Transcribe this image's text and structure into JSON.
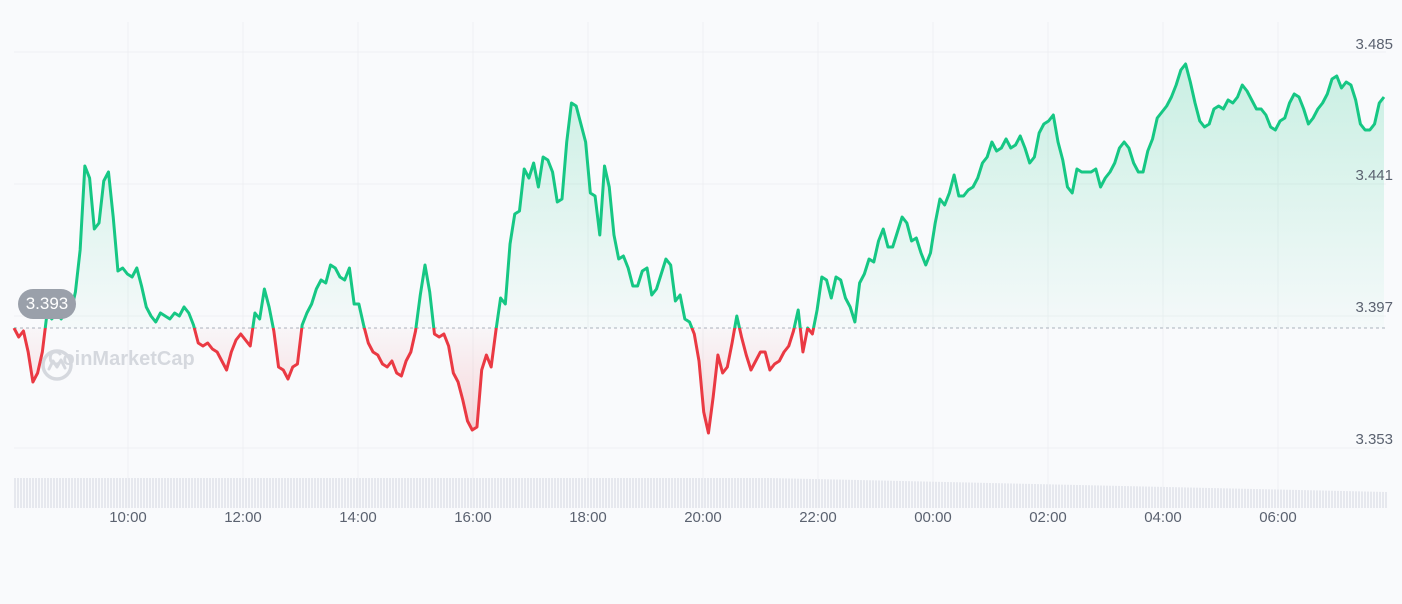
{
  "chart_data": {
    "type": "area",
    "title": "",
    "xlabel": "",
    "ylabel": "",
    "x_tick_labels": [
      "10:00",
      "12:00",
      "14:00",
      "16:00",
      "18:00",
      "20:00",
      "22:00",
      "00:00",
      "02:00",
      "04:00",
      "06:00"
    ],
    "y_tick_labels": [
      "3.485",
      "3.441",
      "3.397",
      "3.353"
    ],
    "ylim": [
      3.353,
      3.485
    ],
    "reference_value": "3.393",
    "grid": true,
    "colors": {
      "up": "#16c784",
      "down": "#ea3943",
      "ref_line": "#c5c9d1",
      "grid": "#eef0f3"
    },
    "series": [
      {
        "values": [
          3.393,
          3.39,
          3.392,
          3.385,
          3.375,
          3.378,
          3.385,
          3.398,
          3.396,
          3.398,
          3.396,
          3.4,
          3.398,
          3.405,
          3.419,
          3.447,
          3.443,
          3.426,
          3.428,
          3.442,
          3.445,
          3.43,
          3.412,
          3.413,
          3.411,
          3.41,
          3.413,
          3.407,
          3.4,
          3.397,
          3.395,
          3.398,
          3.397,
          3.396,
          3.398,
          3.397,
          3.4,
          3.398,
          3.394,
          3.388,
          3.387,
          3.388,
          3.386,
          3.385,
          3.382,
          3.379,
          3.385,
          3.389,
          3.391,
          3.389,
          3.387,
          3.398,
          3.396,
          3.406,
          3.4,
          3.392,
          3.38,
          3.379,
          3.376,
          3.38,
          3.381,
          3.394,
          3.398,
          3.401,
          3.406,
          3.409,
          3.408,
          3.414,
          3.413,
          3.41,
          3.409,
          3.413,
          3.401,
          3.401,
          3.394,
          3.388,
          3.385,
          3.384,
          3.381,
          3.38,
          3.382,
          3.378,
          3.377,
          3.382,
          3.385,
          3.392,
          3.404,
          3.414,
          3.405,
          3.391,
          3.39,
          3.391,
          3.387,
          3.378,
          3.375,
          3.369,
          3.362,
          3.359,
          3.36,
          3.379,
          3.384,
          3.38,
          3.392,
          3.403,
          3.401,
          3.421,
          3.431,
          3.432,
          3.446,
          3.443,
          3.448,
          3.44,
          3.45,
          3.449,
          3.445,
          3.435,
          3.436,
          3.455,
          3.468,
          3.467,
          3.461,
          3.455,
          3.438,
          3.437,
          3.424,
          3.447,
          3.44,
          3.424,
          3.416,
          3.417,
          3.413,
          3.407,
          3.407,
          3.412,
          3.413,
          3.404,
          3.406,
          3.411,
          3.416,
          3.414,
          3.402,
          3.404,
          3.396,
          3.395,
          3.391,
          3.382,
          3.365,
          3.358,
          3.37,
          3.384,
          3.378,
          3.38,
          3.388,
          3.397,
          3.39,
          3.384,
          3.379,
          3.382,
          3.385,
          3.385,
          3.379,
          3.381,
          3.382,
          3.385,
          3.387,
          3.392,
          3.399,
          3.385,
          3.393,
          3.391,
          3.399,
          3.41,
          3.409,
          3.403,
          3.41,
          3.409,
          3.403,
          3.4,
          3.395,
          3.408,
          3.411,
          3.416,
          3.415,
          3.422,
          3.426,
          3.42,
          3.42,
          3.425,
          3.43,
          3.428,
          3.422,
          3.423,
          3.418,
          3.414,
          3.418,
          3.428,
          3.436,
          3.434,
          3.438,
          3.444,
          3.437,
          3.437,
          3.439,
          3.44,
          3.443,
          3.448,
          3.45,
          3.455,
          3.452,
          3.453,
          3.456,
          3.453,
          3.454,
          3.457,
          3.453,
          3.448,
          3.45,
          3.458,
          3.461,
          3.462,
          3.464,
          3.455,
          3.449,
          3.44,
          3.438,
          3.446,
          3.445,
          3.445,
          3.445,
          3.446,
          3.44,
          3.443,
          3.445,
          3.448,
          3.453,
          3.455,
          3.453,
          3.448,
          3.445,
          3.445,
          3.452,
          3.456,
          3.463,
          3.465,
          3.467,
          3.47,
          3.474,
          3.479,
          3.481,
          3.475,
          3.468,
          3.462,
          3.46,
          3.461,
          3.466,
          3.467,
          3.466,
          3.469,
          3.468,
          3.47,
          3.474,
          3.472,
          3.469,
          3.466,
          3.466,
          3.464,
          3.46,
          3.459,
          3.462,
          3.463,
          3.468,
          3.471,
          3.47,
          3.466,
          3.461,
          3.463,
          3.466,
          3.468,
          3.471,
          3.476,
          3.477,
          3.473,
          3.475,
          3.474,
          3.469,
          3.461,
          3.459,
          3.459,
          3.461,
          3.468,
          3.47
        ]
      }
    ]
  },
  "watermark_text": "CoinMarketCap",
  "watermark_icon": "coinmarketcap-logo-icon"
}
